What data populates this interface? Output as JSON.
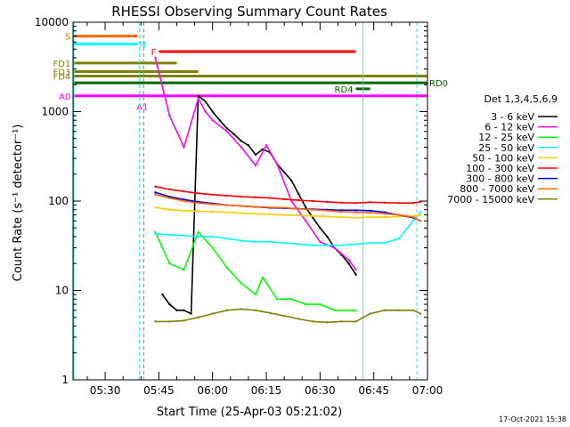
{
  "chart_data": {
    "type": "line",
    "title": "RHESSI Observing Summary Count Rates",
    "xlabel": "Start Time (25-Apr-03 05:21:02)",
    "ylabel": "Count Rate (s⁻¹ detector⁻¹)",
    "x_ticks": [
      "05:30",
      "05:45",
      "06:00",
      "06:15",
      "06:30",
      "06:45",
      "07:00"
    ],
    "x_range": [
      "05:21:02",
      "07:00"
    ],
    "y_ticks": [
      "1",
      "10",
      "100",
      "1000",
      "10000"
    ],
    "ylim": [
      1,
      10000
    ],
    "yscale": "log",
    "legend_title": "Det 1,3,4,5,6,9",
    "legend_position": "right",
    "series": [
      {
        "name": "3 - 6 keV",
        "color": "#000000",
        "times": [
          "05:42",
          "05:44",
          "05:46",
          "05:48",
          "05:50",
          "05:52",
          "05:54",
          "05:56",
          "05:58",
          "06:00",
          "06:02",
          "06:04",
          "06:06",
          "06:08",
          "06:10",
          "06:12",
          "06:14",
          "06:16",
          "06:18",
          "06:20",
          "06:22",
          "06:24",
          "06:26",
          "06:28",
          "06:30",
          "06:32",
          "06:34",
          "06:36",
          "06:38",
          "06:40"
        ],
        "values": [
          null,
          null,
          9,
          7,
          6,
          6,
          5.5,
          1500,
          1300,
          1000,
          800,
          650,
          560,
          470,
          420,
          330,
          380,
          350,
          260,
          210,
          170,
          120,
          85,
          65,
          50,
          40,
          30,
          25,
          20,
          15
        ]
      },
      {
        "name": "6 - 12 keV",
        "color": "#ff00ff",
        "times": [
          "05:42",
          "05:44",
          "05:48",
          "05:52",
          "05:56",
          "05:58",
          "06:00",
          "06:04",
          "06:08",
          "06:12",
          "06:15",
          "06:18",
          "06:22",
          "06:26",
          "06:30",
          "06:34",
          "06:38",
          "06:40"
        ],
        "values": [
          null,
          4000,
          900,
          400,
          1400,
          1000,
          800,
          600,
          400,
          250,
          420,
          260,
          100,
          60,
          35,
          30,
          22,
          17
        ]
      },
      {
        "name": "12 - 25 keV",
        "color": "#00ff00",
        "times": [
          "05:42",
          "05:44",
          "05:48",
          "05:52",
          "05:56",
          "06:00",
          "06:04",
          "06:08",
          "06:12",
          "06:14",
          "06:18",
          "06:22",
          "06:26",
          "06:30",
          "06:34",
          "06:38",
          "06:40"
        ],
        "values": [
          null,
          45,
          20,
          17,
          45,
          30,
          18,
          12,
          9,
          14,
          8,
          8,
          7,
          7,
          6,
          6,
          6
        ]
      },
      {
        "name": "25 - 50 keV",
        "color": "#00ffff",
        "times": [
          "05:40",
          "05:44",
          "05:48",
          "05:52",
          "05:56",
          "06:00",
          "06:04",
          "06:08",
          "06:12",
          "06:16",
          "06:20",
          "06:24",
          "06:28",
          "06:32",
          "06:36",
          "06:40",
          "06:44",
          "06:48",
          "06:52",
          "06:56",
          "06:58"
        ],
        "values": [
          null,
          43,
          42,
          41,
          40,
          40,
          38,
          36,
          35,
          35,
          34,
          33,
          32,
          32,
          32,
          33,
          34,
          34,
          38,
          60,
          75
        ]
      },
      {
        "name": "50 - 100 keV",
        "color": "#ffcc00",
        "times": [
          "05:44",
          "05:48",
          "05:52",
          "05:56",
          "06:00",
          "06:04",
          "06:08",
          "06:12",
          "06:16",
          "06:20",
          "06:24",
          "06:28",
          "06:32",
          "06:36",
          "06:40",
          "06:44",
          "06:48",
          "06:52",
          "06:56",
          "06:58"
        ],
        "values": [
          85,
          80,
          78,
          77,
          76,
          75,
          73,
          72,
          71,
          70,
          69,
          68,
          67,
          66,
          65,
          66,
          66,
          67,
          68,
          70
        ]
      },
      {
        "name": "100 - 300 keV",
        "color": "#ff0000",
        "times": [
          "05:44",
          "05:48",
          "05:52",
          "05:56",
          "06:00",
          "06:04",
          "06:08",
          "06:12",
          "06:16",
          "06:20",
          "06:24",
          "06:28",
          "06:32",
          "06:36",
          "06:40",
          "06:44",
          "06:48",
          "06:52",
          "06:56",
          "06:58"
        ],
        "values": [
          145,
          135,
          128,
          122,
          118,
          115,
          112,
          110,
          108,
          105,
          102,
          100,
          98,
          96,
          95,
          97,
          96,
          95,
          95,
          98
        ]
      },
      {
        "name": "300 - 800 keV",
        "color": "#0000ff",
        "times": [
          "05:44",
          "05:48",
          "05:52",
          "05:56",
          "06:00",
          "06:04",
          "06:08",
          "06:12",
          "06:16",
          "06:20",
          "06:24",
          "06:28",
          "06:32",
          "06:36",
          "06:40",
          "06:44",
          "06:48",
          "06:52",
          "06:56",
          "06:58"
        ],
        "values": [
          125,
          112,
          104,
          98,
          94,
          90,
          88,
          86,
          84,
          83,
          82,
          81,
          80,
          79,
          79,
          78,
          75,
          70,
          65,
          60
        ]
      },
      {
        "name": "800 - 7000 keV",
        "color": "#ff6600",
        "times": [
          "05:44",
          "05:48",
          "05:52",
          "05:56",
          "06:00",
          "06:04",
          "06:08",
          "06:12",
          "06:16",
          "06:20",
          "06:24",
          "06:28",
          "06:32",
          "06:36",
          "06:40",
          "06:44",
          "06:48",
          "06:52",
          "06:56",
          "06:58"
        ],
        "values": [
          118,
          108,
          100,
          95,
          92,
          90,
          88,
          86,
          85,
          84,
          82,
          80,
          78,
          76,
          75,
          74,
          72,
          70,
          66,
          60
        ]
      },
      {
        "name": "7000 - 15000 keV",
        "color": "#808000",
        "times": [
          "05:44",
          "05:48",
          "05:52",
          "05:56",
          "06:00",
          "06:04",
          "06:08",
          "06:12",
          "06:16",
          "06:20",
          "06:24",
          "06:28",
          "06:32",
          "06:36",
          "06:40",
          "06:44",
          "06:48",
          "06:52",
          "06:56",
          "06:58"
        ],
        "values": [
          4.5,
          4.5,
          4.6,
          5,
          5.5,
          6,
          6.2,
          6,
          5.6,
          5.2,
          4.8,
          4.5,
          4.4,
          4.5,
          4.5,
          5.5,
          6,
          6,
          6,
          5.5
        ]
      }
    ],
    "annotations": [
      {
        "label": "S",
        "color": "#ff6600"
      },
      {
        "label": "N",
        "color": "#00ffff"
      },
      {
        "label": "FD1",
        "color": "#808000"
      },
      {
        "label": "FD3",
        "color": "#808000"
      },
      {
        "label": "FD4",
        "color": "#808000"
      },
      {
        "label": "RD0",
        "color": "#006600"
      },
      {
        "label": "RD4",
        "color": "#006600"
      },
      {
        "label": "A0",
        "color": "#ff00ff"
      },
      {
        "label": "A1",
        "color": "#ff00ff"
      },
      {
        "label": "F",
        "color": "#ff0000"
      }
    ]
  },
  "timestamp": "17-Oct-2021 15:38"
}
